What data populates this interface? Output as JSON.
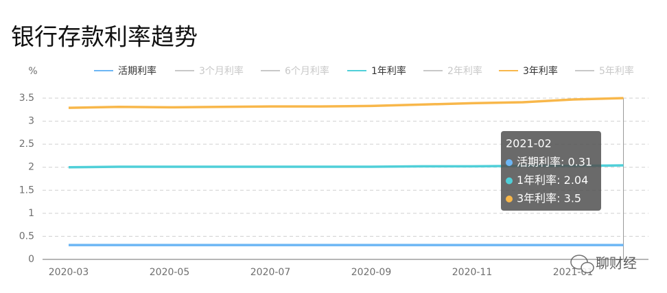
{
  "chart_data": {
    "type": "line",
    "title": "银行存款利率趋势",
    "y_label": "%",
    "categories": [
      "2020-03",
      null,
      "2020-05",
      null,
      "2020-07",
      null,
      "2020-09",
      null,
      "2020-11",
      null,
      "2021-01",
      null
    ],
    "series": [
      {
        "name": "活期利率",
        "color": "#6cb6f4",
        "selected": true,
        "values": [
          0.31,
          0.31,
          0.31,
          0.31,
          0.31,
          0.31,
          0.31,
          0.31,
          0.31,
          0.31,
          0.31,
          0.31
        ]
      },
      {
        "name": "3个月利率",
        "color": "#c8c8c8",
        "selected": false
      },
      {
        "name": "6个月利率",
        "color": "#c8c8c8",
        "selected": false
      },
      {
        "name": "1年利率",
        "color": "#4fcfd8",
        "selected": true,
        "values": [
          2.0,
          2.01,
          2.01,
          2.01,
          2.01,
          2.01,
          2.01,
          2.02,
          2.02,
          2.03,
          2.03,
          2.04
        ]
      },
      {
        "name": "2年利率",
        "color": "#c8c8c8",
        "selected": false
      },
      {
        "name": "3年利率",
        "color": "#f8b74a",
        "selected": true,
        "values": [
          3.29,
          3.31,
          3.3,
          3.31,
          3.32,
          3.32,
          3.33,
          3.36,
          3.39,
          3.41,
          3.47,
          3.5
        ]
      },
      {
        "name": "5年利率",
        "color": "#c8c8c8",
        "selected": false
      }
    ],
    "ylim": [
      0,
      3.5
    ],
    "yticks": [
      0,
      0.5,
      1,
      1.5,
      2,
      2.5,
      3,
      3.5
    ],
    "grid": true,
    "tooltip": {
      "title": "2021-02",
      "items": [
        "活期利率: 0.31",
        "1年利率: 2.04",
        "3年利率: 3.5"
      ]
    },
    "watermark": "聊财经"
  }
}
